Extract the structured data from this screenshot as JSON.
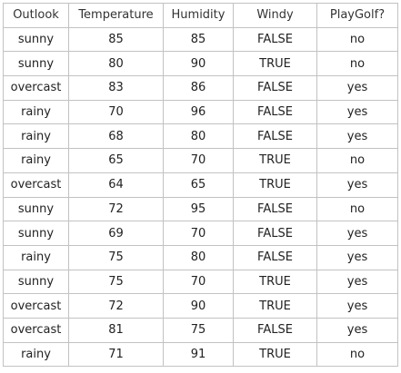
{
  "table": {
    "headers": [
      "Outlook",
      "Temperature",
      "Humidity",
      "Windy",
      "PlayGolf?"
    ],
    "rows": [
      [
        "sunny",
        "85",
        "85",
        "FALSE",
        "no"
      ],
      [
        "sunny",
        "80",
        "90",
        "TRUE",
        "no"
      ],
      [
        "overcast",
        "83",
        "86",
        "FALSE",
        "yes"
      ],
      [
        "rainy",
        "70",
        "96",
        "FALSE",
        "yes"
      ],
      [
        "rainy",
        "68",
        "80",
        "FALSE",
        "yes"
      ],
      [
        "rainy",
        "65",
        "70",
        "TRUE",
        "no"
      ],
      [
        "overcast",
        "64",
        "65",
        "TRUE",
        "yes"
      ],
      [
        "sunny",
        "72",
        "95",
        "FALSE",
        "no"
      ],
      [
        "sunny",
        "69",
        "70",
        "FALSE",
        "yes"
      ],
      [
        "rainy",
        "75",
        "80",
        "FALSE",
        "yes"
      ],
      [
        "sunny",
        "75",
        "70",
        "TRUE",
        "yes"
      ],
      [
        "overcast",
        "72",
        "90",
        "TRUE",
        "yes"
      ],
      [
        "overcast",
        "81",
        "75",
        "FALSE",
        "yes"
      ],
      [
        "rainy",
        "71",
        "91",
        "TRUE",
        "no"
      ]
    ]
  },
  "colors": {
    "border": "#c2c2c2",
    "text": "#222222",
    "background": "#ffffff"
  }
}
